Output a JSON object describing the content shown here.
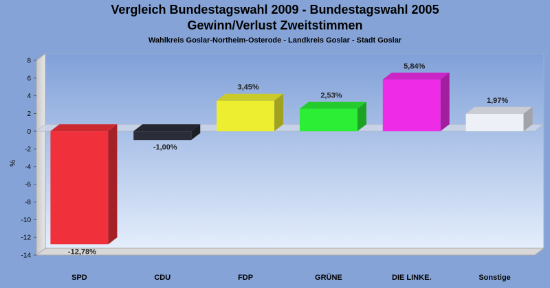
{
  "chart_data": {
    "type": "bar",
    "title": "Vergleich Bundestagswahl 2009 - Bundestagswahl 2005",
    "subtitle": "Gewinn/Verlust Zweitstimmen",
    "caption": "Wahlkreis Goslar-Northeim-Osterode - Landkreis Goslar - Stadt Goslar",
    "ylabel": "%",
    "xlabel": "",
    "ylim": [
      -14,
      8
    ],
    "yticks": [
      8,
      6,
      4,
      2,
      0,
      -2,
      -4,
      -6,
      -8,
      -10,
      -12,
      -14
    ],
    "categories": [
      "SPD",
      "CDU",
      "FDP",
      "GRÜNE",
      "DIE LINKE.",
      "Sonstige"
    ],
    "values": [
      -12.78,
      -1.0,
      3.45,
      2.53,
      5.84,
      1.97
    ],
    "value_labels": [
      "-12,78%",
      "-1,00%",
      "3,45%",
      "2,53%",
      "5,84%",
      "1,97%"
    ],
    "colors": [
      "#f0303a",
      "#2a2d38",
      "#eeee30",
      "#2cee35",
      "#ee2ce8",
      "#eef0f8"
    ],
    "grid": false
  }
}
